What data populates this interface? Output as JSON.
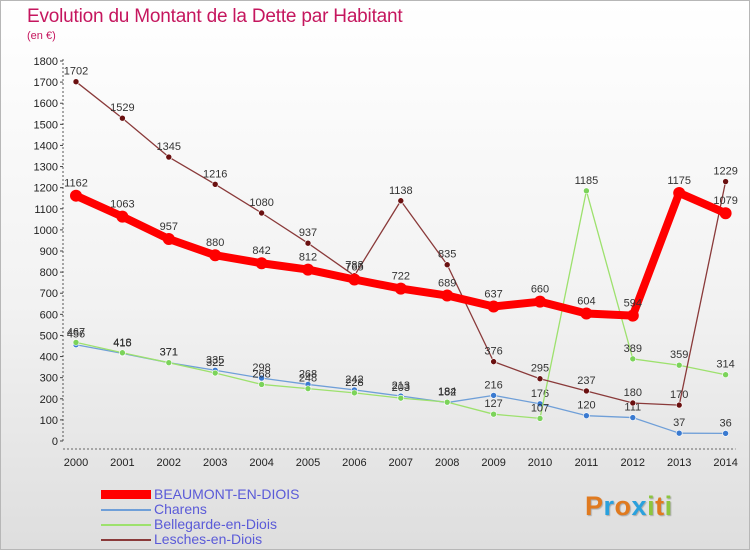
{
  "header": {
    "title": "Evolution du Montant de la Dette par Habitant",
    "subtitle": "(en €)"
  },
  "logo": {
    "letters": [
      "P",
      "r",
      "o",
      "x",
      "i",
      "t",
      "i"
    ],
    "colors": [
      "#e07a1f",
      "#2aa1dd",
      "#e07a1f",
      "#2aa1dd",
      "#8cc63f",
      "#e07a1f",
      "#8cc63f"
    ]
  },
  "chart_data": {
    "type": "line",
    "title": "Evolution du Montant de la Dette par Habitant",
    "subtitle": "(en €)",
    "xlabel": "",
    "ylabel": "",
    "x": [
      "2000",
      "2001",
      "2002",
      "2003",
      "2004",
      "2005",
      "2006",
      "2007",
      "2008",
      "2009",
      "2010",
      "2011",
      "2012",
      "2013",
      "2014"
    ],
    "y_ticks": [
      "0",
      "100",
      "200",
      "300",
      "400",
      "500",
      "600",
      "700",
      "800",
      "900",
      "1000",
      "1100",
      "1200",
      "1300",
      "1400",
      "1500",
      "1600",
      "1700",
      "1800"
    ],
    "ylim": [
      0,
      1800
    ],
    "grid": false,
    "legend_position": "bottom-left",
    "series": [
      {
        "name": "BEAUMONT-EN-DIOIS",
        "color": "#ff0000",
        "marker_color": "#ff0000",
        "emphasis": "thick",
        "values": [
          1162,
          1063,
          957,
          880,
          842,
          812,
          765,
          722,
          689,
          637,
          660,
          604,
          594,
          1175,
          1079
        ]
      },
      {
        "name": "Charens",
        "color": "#6f9fd8",
        "marker_color": "#3a7ad0",
        "values": [
          456,
          415,
          371,
          335,
          298,
          268,
          242,
          213,
          182,
          216,
          176,
          120,
          111,
          37,
          36
        ]
      },
      {
        "name": "Bellegarde-en-Diois",
        "color": "#9de16d",
        "marker_color": "#7bd35a",
        "values": [
          467,
          418,
          371,
          322,
          268,
          248,
          228,
          203,
          184,
          127,
          107,
          1185,
          389,
          359,
          314
        ]
      },
      {
        "name": "Lesches-en-Diois",
        "color": "#8a3a3a",
        "marker_color": "#6a1010",
        "values": [
          1702,
          1529,
          1345,
          1216,
          1080,
          937,
          783,
          1138,
          835,
          376,
          295,
          237,
          180,
          170,
          1229
        ]
      }
    ]
  }
}
